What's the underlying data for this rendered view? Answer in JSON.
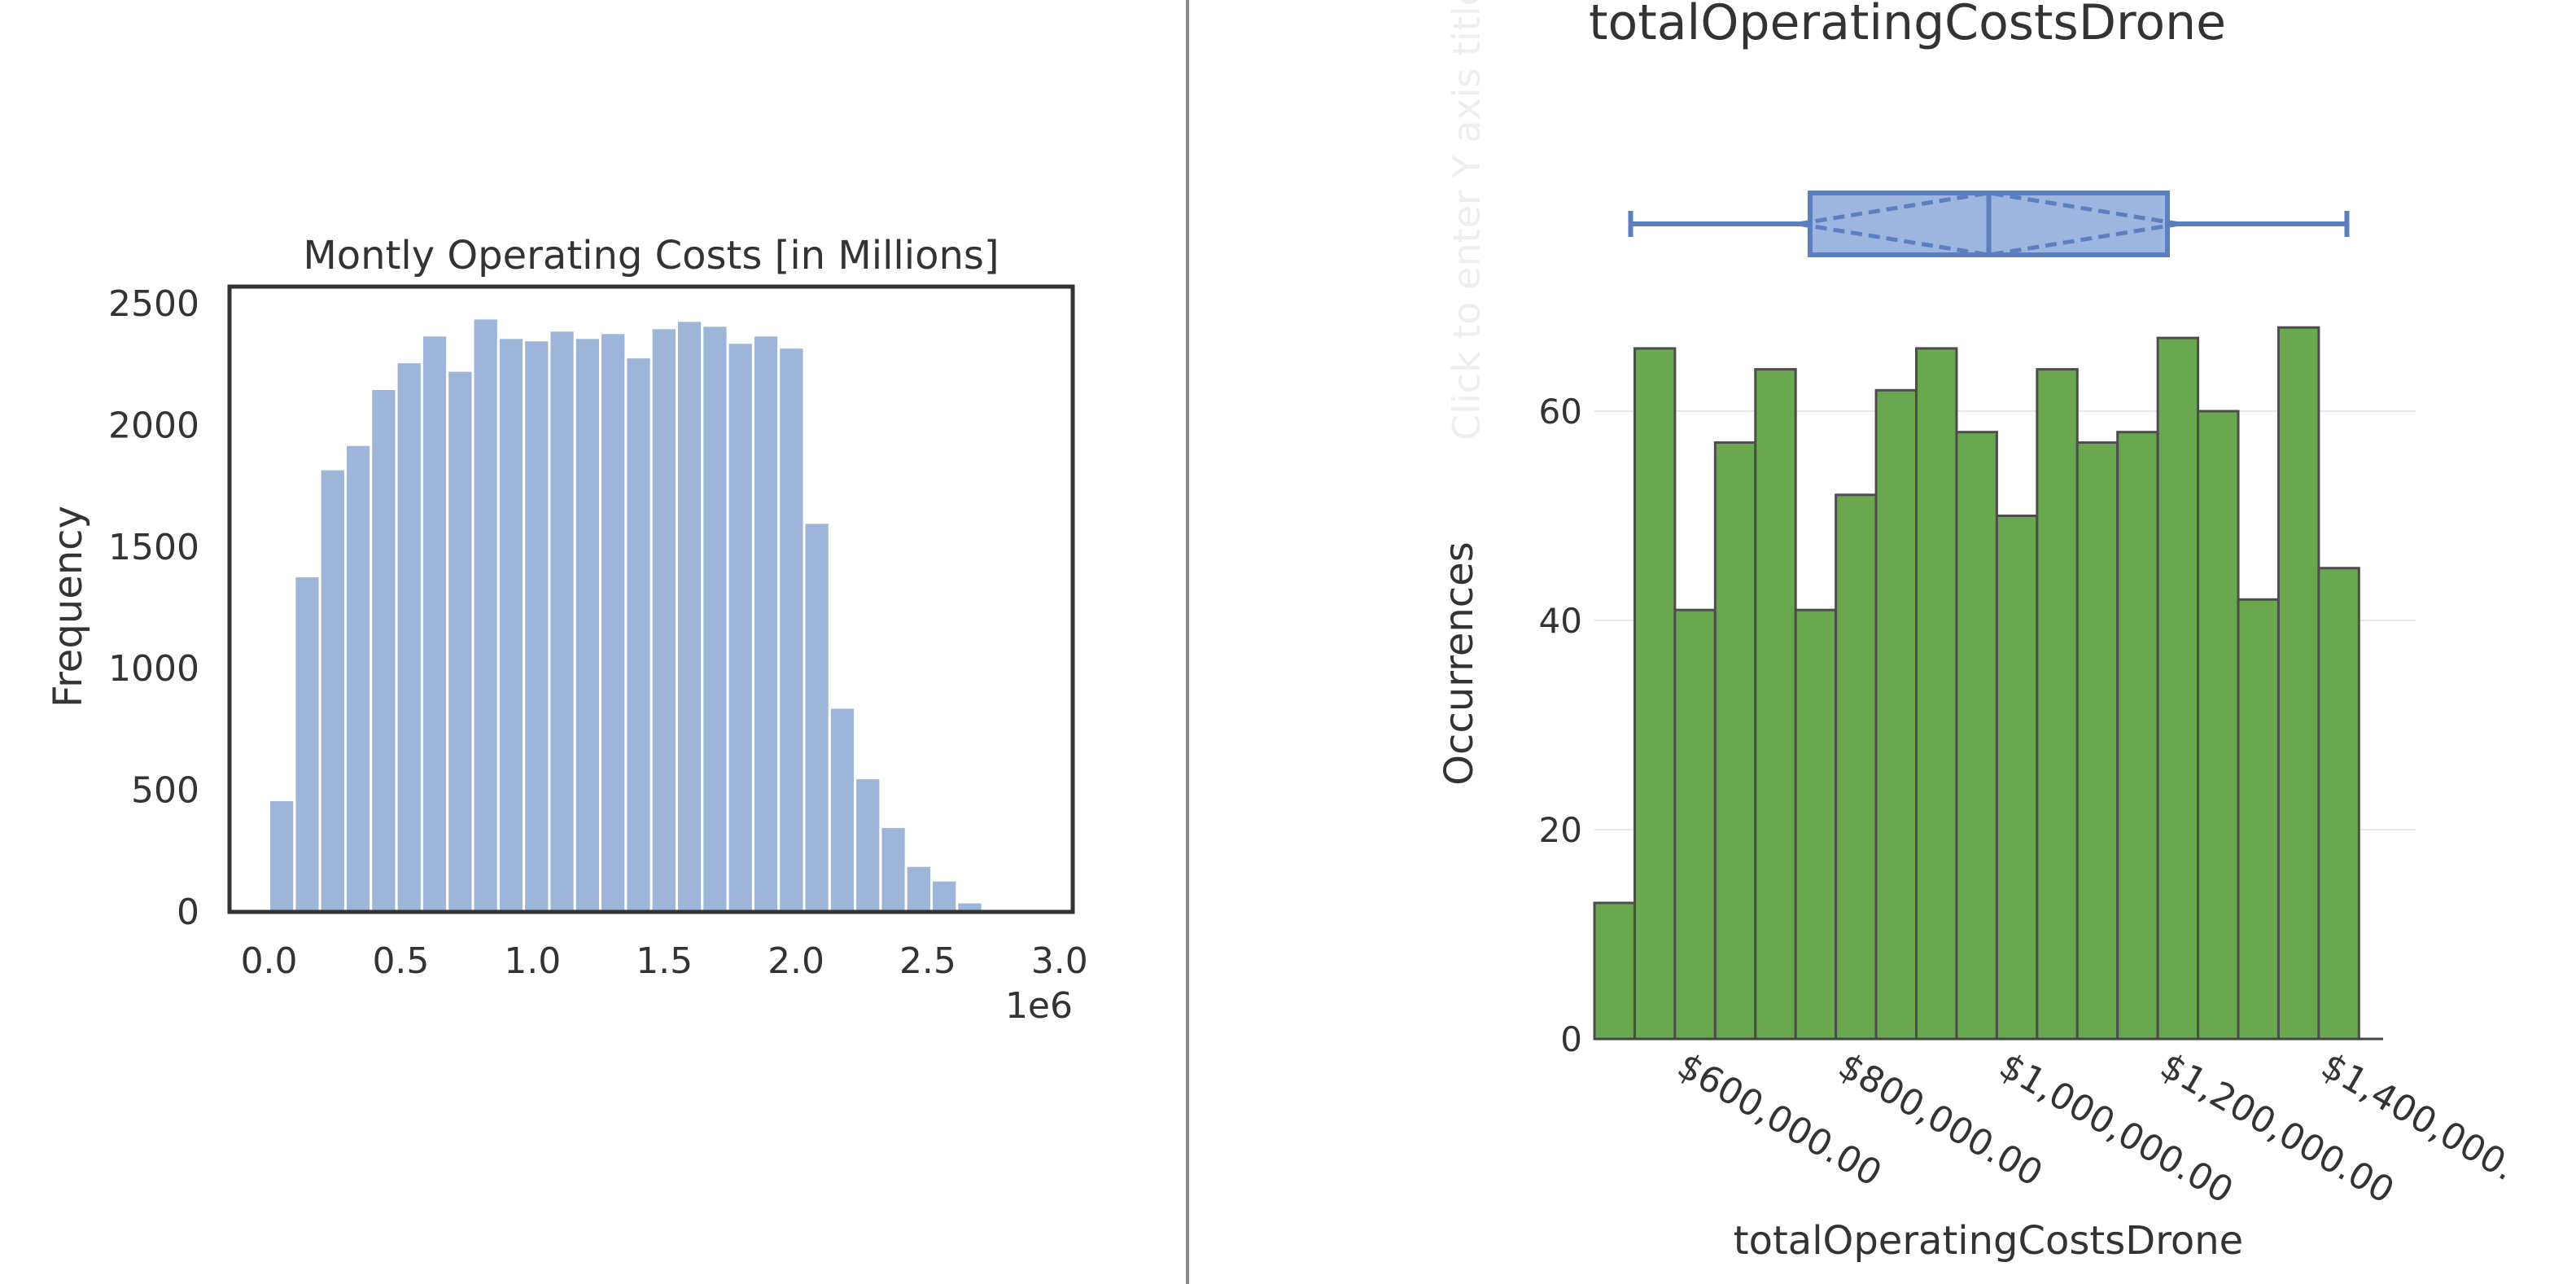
{
  "colors": {
    "left_bar": "#9db5d8",
    "left_bar_edge": "#ffffff",
    "right_bar": "#6aa84f",
    "right_bar_edge": "#4d4d4d",
    "box": "#5b7fbf",
    "box_fill": "#9eb5df",
    "text": "#333333",
    "grid": "#e8e8e8",
    "faint_title": "#eeeeee"
  },
  "chart_data": [
    {
      "type": "bar",
      "title": "Montly Operating Costs [in Millions]",
      "xlabel": "",
      "ylabel": "Frequency",
      "x_offset_label": "1e6",
      "xlim": [
        -0.15,
        3.05
      ],
      "ylim": [
        0,
        2570
      ],
      "xticks": [
        0.0,
        0.5,
        1.0,
        1.5,
        2.0,
        2.5,
        3.0
      ],
      "xtick_labels": [
        "0.0",
        "0.5",
        "1.0",
        "1.5",
        "2.0",
        "2.5",
        "3.0"
      ],
      "yticks": [
        0,
        500,
        1000,
        1500,
        2000,
        2500
      ],
      "ytick_labels": [
        "0",
        "500",
        "1000",
        "1500",
        "2000",
        "2500"
      ],
      "bin_start": 0.0,
      "bin_width": 0.0967,
      "values": [
        460,
        1380,
        1820,
        1920,
        2150,
        2260,
        2370,
        2225,
        2440,
        2360,
        2350,
        2390,
        2360,
        2380,
        2280,
        2400,
        2430,
        2410,
        2340,
        2370,
        2320,
        1600,
        840,
        550,
        350,
        190,
        130,
        40
      ],
      "grid": false
    },
    {
      "type": "bar",
      "title": "totalOperatingCostsDrone",
      "xlabel": "totalOperatingCostsDrone",
      "ylabel": "Occurrences",
      "y_placeholder": "Click to enter Y axis title",
      "xlim": [
        500000,
        1480000
      ],
      "ylim": [
        0,
        70
      ],
      "xticks": [
        600000,
        800000,
        1000000,
        1200000,
        1400000
      ],
      "xtick_labels": [
        "$600,000.00",
        "$800,000.00",
        "$1,000,000.00",
        "$1,200,000.00",
        "$1,400,000."
      ],
      "yticks": [
        0,
        20,
        40,
        60
      ],
      "ytick_labels": [
        "0",
        "20",
        "40",
        "60"
      ],
      "bin_start": 500000,
      "bin_width": 50000,
      "values": [
        13,
        66,
        41,
        57,
        64,
        41,
        52,
        62,
        66,
        58,
        50,
        64,
        57,
        58,
        67,
        60,
        42,
        68,
        45
      ],
      "boxplot": {
        "min": 545000,
        "q1": 768000,
        "median": 990000,
        "q3": 1212000,
        "max": 1435000,
        "notch_low": 940000,
        "notch_high": 1040000
      },
      "grid": true
    }
  ]
}
